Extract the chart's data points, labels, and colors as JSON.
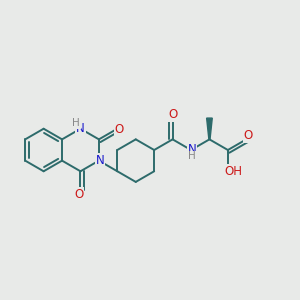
{
  "bg_color": "#e8eae8",
  "bond_color": "#2d6b6b",
  "bond_width": 1.4,
  "atom_colors": {
    "N": "#1a1acc",
    "O": "#cc1a1a",
    "H": "#888888",
    "C": "#2d6b6b"
  },
  "label_bg": "#e8eae8"
}
